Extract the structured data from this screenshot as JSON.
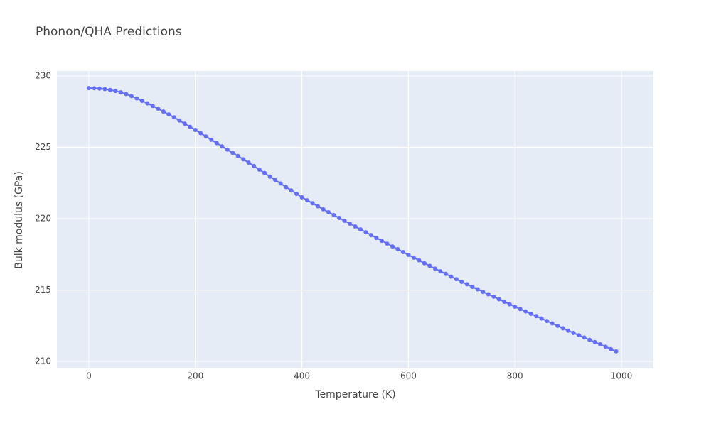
{
  "chart_data": {
    "type": "line",
    "title": "Phonon/QHA Predictions",
    "x_label": "Temperature (K)",
    "y_label": "Bulk modulus (GPa)",
    "x": [
      0,
      10,
      20,
      30,
      40,
      50,
      60,
      70,
      80,
      90,
      100,
      110,
      120,
      130,
      140,
      150,
      160,
      170,
      180,
      190,
      200,
      210,
      220,
      230,
      240,
      250,
      260,
      270,
      280,
      290,
      300,
      310,
      320,
      330,
      340,
      350,
      360,
      370,
      380,
      390,
      400,
      410,
      420,
      430,
      440,
      450,
      460,
      470,
      480,
      490,
      500,
      510,
      520,
      530,
      540,
      550,
      560,
      570,
      580,
      590,
      600,
      610,
      620,
      630,
      640,
      650,
      660,
      670,
      680,
      690,
      700,
      710,
      720,
      730,
      740,
      750,
      760,
      770,
      780,
      790,
      800,
      810,
      820,
      830,
      840,
      850,
      860,
      870,
      880,
      890,
      900,
      910,
      920,
      930,
      940,
      950,
      960,
      970,
      980,
      990
    ],
    "series": [
      {
        "name": "Bulk modulus",
        "color": "#636efa",
        "values": [
          229.15,
          229.14,
          229.12,
          229.08,
          229.02,
          228.95,
          228.85,
          228.73,
          228.59,
          228.43,
          228.26,
          228.08,
          227.9,
          227.71,
          227.51,
          227.31,
          227.1,
          226.88,
          226.66,
          226.44,
          226.22,
          225.99,
          225.76,
          225.53,
          225.3,
          225.07,
          224.84,
          224.61,
          224.39,
          224.16,
          223.93,
          223.69,
          223.44,
          223.2,
          222.95,
          222.71,
          222.47,
          222.22,
          221.98,
          221.74,
          221.5,
          221.29,
          221.08,
          220.87,
          220.66,
          220.45,
          220.25,
          220.05,
          219.85,
          219.65,
          219.45,
          219.25,
          219.05,
          218.85,
          218.65,
          218.45,
          218.25,
          218.05,
          217.86,
          217.66,
          217.46,
          217.27,
          217.08,
          216.88,
          216.69,
          216.5,
          216.31,
          216.13,
          215.94,
          215.76,
          215.57,
          215.4,
          215.22,
          215.05,
          214.87,
          214.7,
          214.53,
          214.35,
          214.18,
          214.0,
          213.83,
          213.66,
          213.5,
          213.33,
          213.17,
          213.0,
          212.83,
          212.66,
          212.49,
          212.32,
          212.15,
          211.99,
          211.83,
          211.67,
          211.51,
          211.35,
          211.19,
          211.03,
          210.86,
          210.7
        ]
      }
    ],
    "xlim": [
      -60,
      1060
    ],
    "xticks": [
      0,
      200,
      400,
      600,
      800,
      1000
    ],
    "ylim": [
      209.5,
      230.35
    ],
    "yticks": [
      210,
      215,
      220,
      225,
      230
    ],
    "grid": true,
    "background": "#e5ecf6"
  }
}
